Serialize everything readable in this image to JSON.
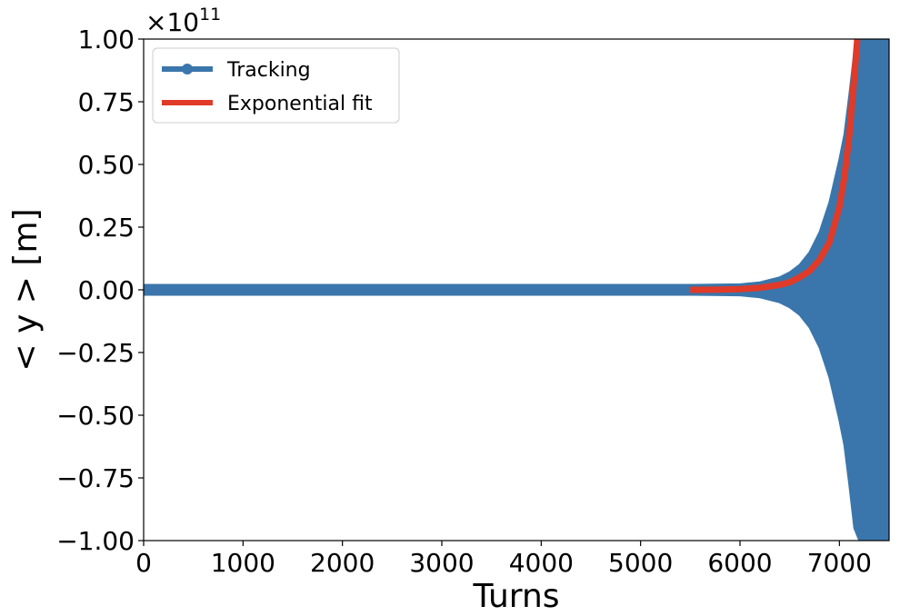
{
  "chart_data": {
    "type": "line",
    "xlabel": "Turns",
    "ylabel": "< y >  [m]",
    "offset_text": "×10",
    "offset_exponent": "11",
    "xlim": [
      0,
      7500
    ],
    "ylim": [
      -1.0,
      1.0
    ],
    "x_ticks": [
      0,
      1000,
      2000,
      3000,
      4000,
      5000,
      6000,
      7000
    ],
    "x_tick_labels": [
      "0",
      "1000",
      "2000",
      "3000",
      "4000",
      "5000",
      "6000",
      "7000"
    ],
    "y_ticks": [
      1.0,
      0.75,
      0.5,
      0.25,
      0.0,
      -0.25,
      -0.5,
      -0.75,
      -1.0
    ],
    "y_tick_labels": [
      "1.00",
      "0.75",
      "0.50",
      "0.25",
      "0.00",
      "−0.25",
      "−0.50",
      "−0.75",
      "−1.00"
    ],
    "grid": false,
    "legend_position": "upper-left",
    "series": [
      {
        "name": "Tracking",
        "color": "#3a76ab",
        "style": "oscillating-envelope",
        "envelope": {
          "x": [
            0,
            5500,
            6000,
            6200,
            6400,
            6500,
            6600,
            6700,
            6800,
            6900,
            7000,
            7050,
            7100,
            7150,
            7200,
            7500
          ],
          "amplitude": [
            0.02,
            0.02,
            0.022,
            0.03,
            0.05,
            0.07,
            0.1,
            0.15,
            0.23,
            0.35,
            0.52,
            0.62,
            0.78,
            0.95,
            1.0,
            1.0
          ]
        }
      },
      {
        "name": "Exponential fit",
        "color": "#e03a28",
        "style": "line",
        "x": [
          5500,
          5800,
          6000,
          6200,
          6400,
          6500,
          6600,
          6700,
          6800,
          6900,
          7000,
          7050,
          7100,
          7150,
          7180
        ],
        "y": [
          0.0,
          0.001,
          0.003,
          0.008,
          0.02,
          0.03,
          0.05,
          0.075,
          0.12,
          0.19,
          0.33,
          0.45,
          0.62,
          0.85,
          1.0
        ]
      }
    ]
  }
}
